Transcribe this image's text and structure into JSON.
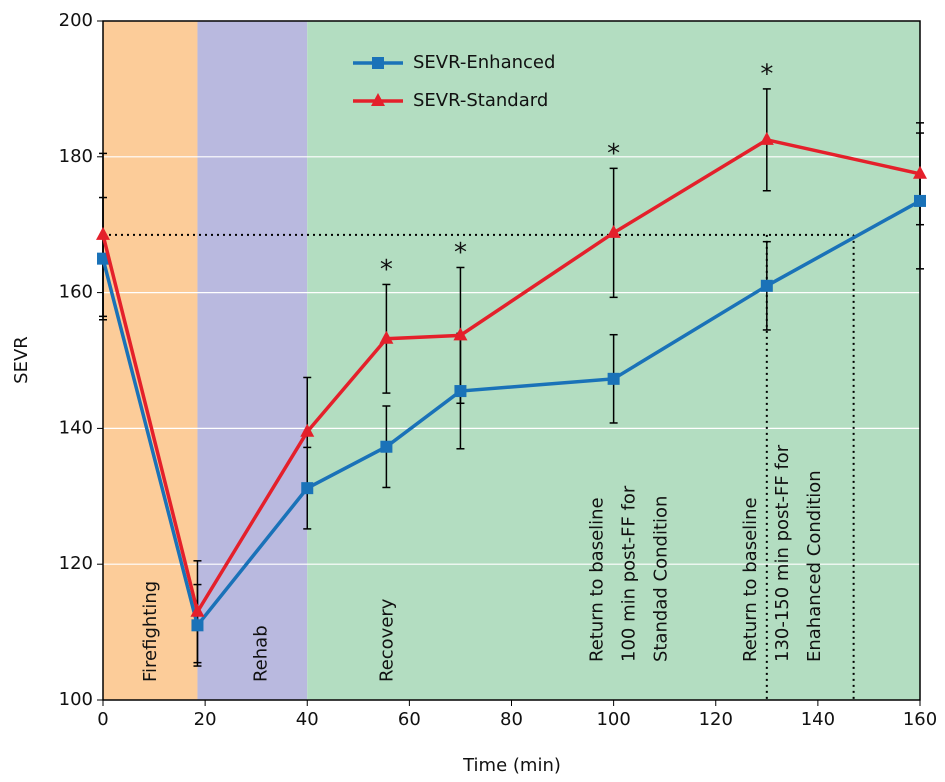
{
  "chart_data": {
    "type": "line",
    "x_label": "Time (min)",
    "y_label": "SEVR",
    "xlim": [
      0,
      160
    ],
    "ylim": [
      100,
      200
    ],
    "xticks": [
      0,
      20,
      40,
      60,
      80,
      100,
      120,
      140,
      160
    ],
    "yticks": [
      100,
      120,
      140,
      160,
      180,
      200
    ],
    "grid": true,
    "regions": [
      {
        "label": "Firefighting",
        "start": 0,
        "end": 18.5,
        "color": "#fccc99"
      },
      {
        "label": "Rehab",
        "start": 18.5,
        "end": 40,
        "color": "#b9b9df"
      },
      {
        "label": "Recovery",
        "start": 40,
        "end": 160,
        "color": "#b3ddc1"
      }
    ],
    "baseline": 168.5,
    "baseline_returns": [
      130,
      147
    ],
    "annotations": [
      {
        "x": 100,
        "lines": [
          "Return to baseline",
          "100 min post-FF for",
          "Standad Condition"
        ]
      },
      {
        "x": 130,
        "lines": [
          "Return to baseline",
          "130-150 min post-FF for",
          "Enahanced Condition"
        ]
      }
    ],
    "markers": [
      {
        "text": "*",
        "x": 55.5
      },
      {
        "text": "*",
        "x": 70
      },
      {
        "text": "*",
        "x": 100
      },
      {
        "text": "*",
        "x": 130
      }
    ],
    "x": [
      0,
      18.5,
      40,
      55.5,
      70,
      100,
      130,
      160
    ],
    "series": [
      {
        "name": "SEVR-Enhanced",
        "color": "#1a72b8",
        "marker": "square",
        "values": [
          165,
          111,
          131.2,
          137.3,
          145.5,
          147.3,
          161,
          173.5
        ],
        "errors": [
          9,
          6,
          6,
          6,
          8.5,
          6.5,
          6.5,
          10
        ]
      },
      {
        "name": "SEVR-Standard",
        "color": "#e4202b",
        "marker": "triangle",
        "values": [
          168.5,
          113,
          139.5,
          153.2,
          153.7,
          168.8,
          182.5,
          177.5
        ],
        "errors": [
          12,
          7.5,
          8,
          8,
          10,
          9.5,
          7.5,
          7.5
        ]
      }
    ]
  }
}
